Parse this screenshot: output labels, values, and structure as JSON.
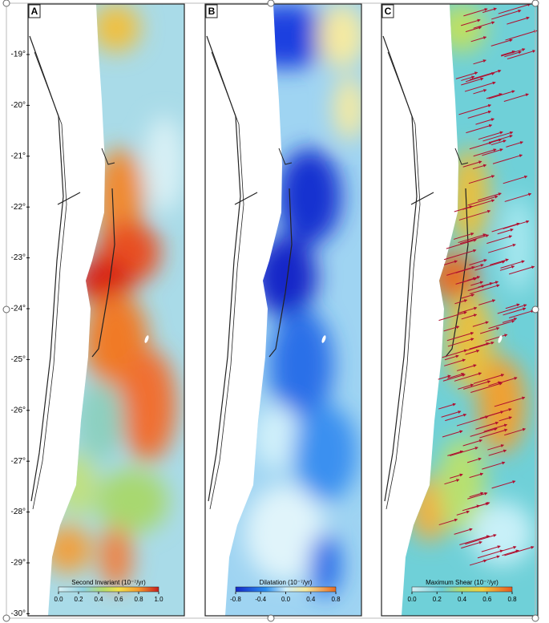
{
  "latitude_labels": [
    "-19°",
    "-20°",
    "-21°",
    "-22°",
    "-23°",
    "-24°",
    "-25°",
    "-26°",
    "-27°",
    "-28°",
    "-29°",
    "-30°"
  ],
  "panels": [
    {
      "label": "A",
      "colorbar": {
        "title": "Second Invariant (10⁻⁷/yr)",
        "ticks": [
          "0.0",
          "0.2",
          "0.4",
          "0.6",
          "0.8",
          "1.0"
        ]
      }
    },
    {
      "label": "B",
      "colorbar": {
        "title": "Dilatation (10⁻⁷/yr)",
        "ticks": [
          "-0.8",
          "-0.4",
          "0.0",
          "0.4",
          "0.8"
        ]
      }
    },
    {
      "label": "C",
      "colorbar": {
        "title": "Maximum Shear (10⁻⁷/yr)",
        "ticks": [
          "0.0",
          "0.2",
          "0.4",
          "0.6",
          "0.8"
        ]
      }
    }
  ]
}
